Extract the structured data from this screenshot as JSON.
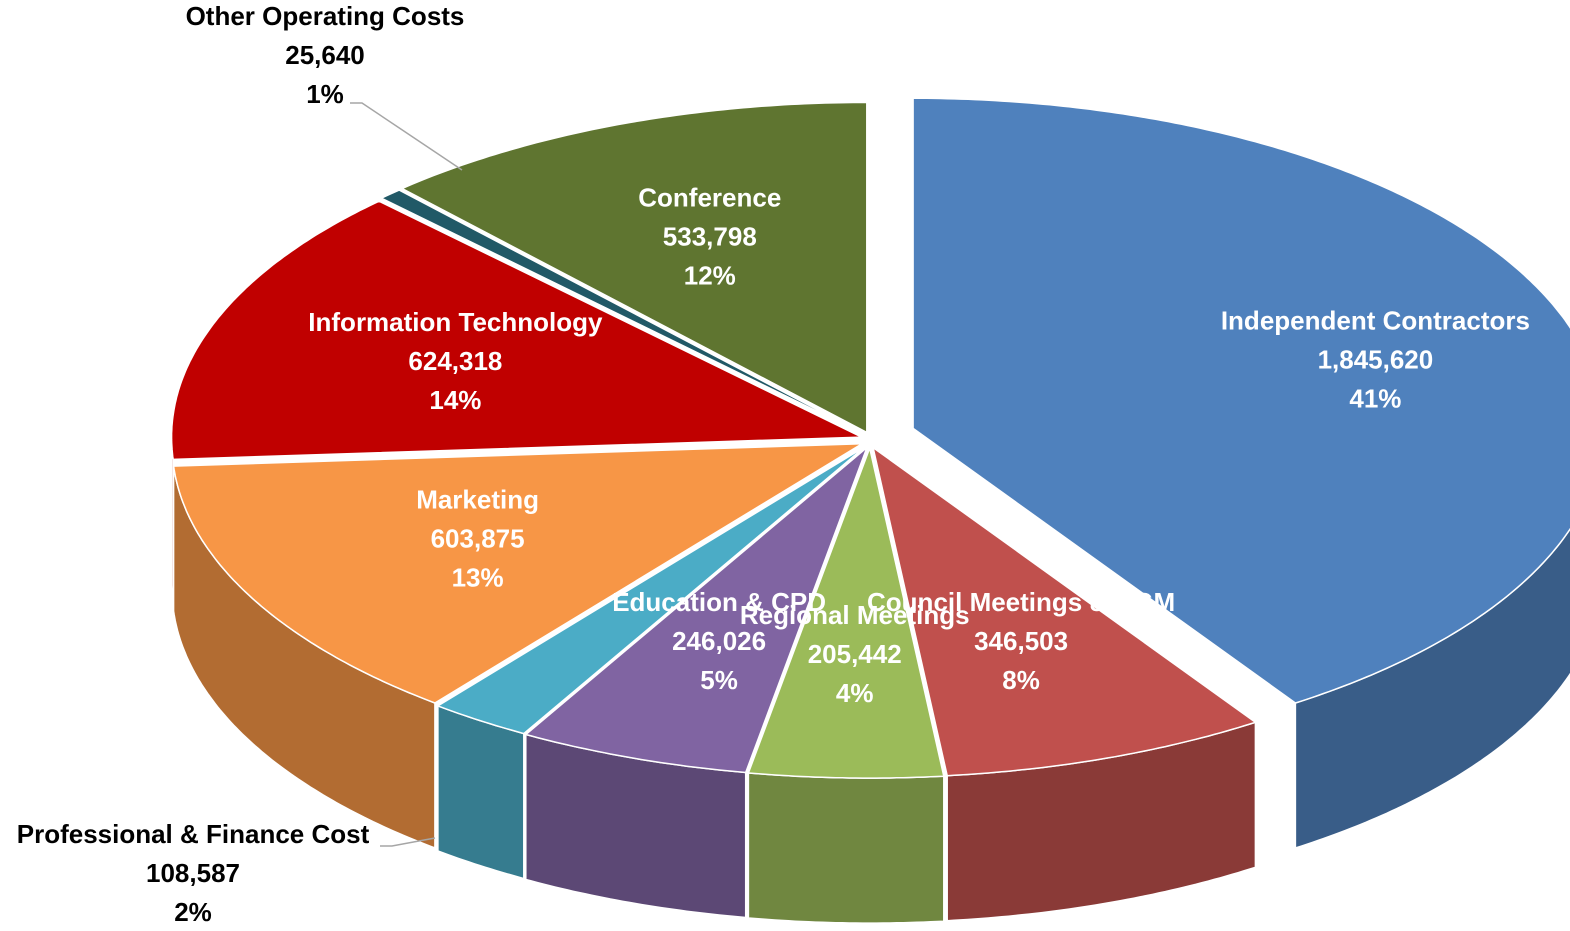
{
  "chart_data": {
    "type": "pie",
    "categories": [
      "Independent Contractors",
      "Council Meetings & AGM",
      "Regional Meetings",
      "Education & CPD",
      "Professional & Finance Cost",
      "Marketing",
      "Information Technology",
      "Other Operating Costs",
      "Conference"
    ],
    "values": [
      1845620,
      346503,
      205442,
      246026,
      108587,
      603875,
      624318,
      25640,
      533798
    ],
    "value_labels": [
      "1,845,620",
      "346,503",
      "205,442",
      "246,026",
      "108,587",
      "603,875",
      "624,318",
      "25,640",
      "533,798"
    ],
    "percent_labels": [
      "41%",
      "8%",
      "4%",
      "5%",
      "2%",
      "13%",
      "14%",
      "1%",
      "12%"
    ],
    "colors": [
      "#4f81bd",
      "#c0504d",
      "#9bbb59",
      "#8064a2",
      "#4bacc6",
      "#f79646",
      "#c00000",
      "#215967",
      "#5f7530"
    ]
  }
}
